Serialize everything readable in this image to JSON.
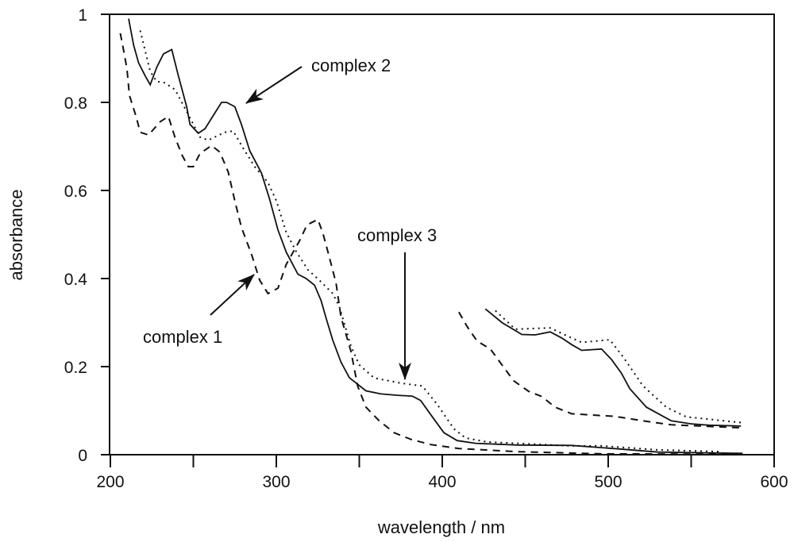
{
  "chart_data": {
    "type": "line",
    "title": "",
    "xlabel": "wavelength / nm",
    "ylabel": "absorbance",
    "xlim": [
      200,
      600
    ],
    "ylim": [
      0,
      1
    ],
    "xticks": [
      200,
      250,
      300,
      350,
      400,
      450,
      500,
      550,
      600
    ],
    "xtick_labels": [
      "200",
      "300",
      "400",
      "500",
      "600"
    ],
    "xtick_label_values": [
      200,
      300,
      400,
      500,
      600
    ],
    "yticks": [
      0,
      0.2,
      0.4,
      0.6,
      0.8,
      1
    ],
    "ytick_labels": [
      "0",
      "0.2",
      "0.4",
      "0.6",
      "0.8",
      "1"
    ],
    "grid": false,
    "color": "#111111",
    "series": [
      {
        "name": "complex 2",
        "style": "solid",
        "segments": [
          [
            [
              211,
              0.99
            ],
            [
              214,
              0.93
            ],
            [
              217,
              0.89
            ],
            [
              221,
              0.86
            ],
            [
              224,
              0.84
            ],
            [
              228,
              0.88
            ],
            [
              232,
              0.91
            ],
            [
              237,
              0.92
            ],
            [
              241,
              0.86
            ],
            [
              246,
              0.79
            ],
            [
              248,
              0.75
            ],
            [
              253,
              0.73
            ],
            [
              257,
              0.74
            ],
            [
              262,
              0.77
            ],
            [
              267,
              0.8
            ],
            [
              270,
              0.8
            ],
            [
              275,
              0.79
            ],
            [
              279,
              0.75
            ],
            [
              284,
              0.69
            ],
            [
              291,
              0.64
            ],
            [
              296,
              0.58
            ],
            [
              301,
              0.51
            ],
            [
              306,
              0.46
            ],
            [
              313,
              0.41
            ],
            [
              318,
              0.4
            ],
            [
              323,
              0.385
            ],
            [
              327,
              0.35
            ],
            [
              330,
              0.31
            ],
            [
              334,
              0.26
            ],
            [
              339,
              0.21
            ],
            [
              344,
              0.175
            ],
            [
              354,
              0.145
            ],
            [
              363,
              0.138
            ],
            [
              373,
              0.135
            ],
            [
              382,
              0.133
            ],
            [
              387,
              0.123
            ],
            [
              394,
              0.086
            ],
            [
              401,
              0.05
            ],
            [
              409,
              0.032
            ],
            [
              420,
              0.026
            ],
            [
              445,
              0.022
            ],
            [
              478,
              0.021
            ],
            [
              507,
              0.013
            ],
            [
              530,
              0.006
            ],
            [
              581,
              0.003
            ]
          ],
          [
            [
              426,
              0.331
            ],
            [
              436,
              0.3
            ],
            [
              448,
              0.273
            ],
            [
              456,
              0.272
            ],
            [
              465,
              0.279
            ],
            [
              472,
              0.265
            ],
            [
              478,
              0.25
            ],
            [
              484,
              0.237
            ],
            [
              496,
              0.24
            ],
            [
              502,
              0.216
            ],
            [
              508,
              0.185
            ],
            [
              513,
              0.15
            ],
            [
              523,
              0.108
            ],
            [
              538,
              0.077
            ],
            [
              550,
              0.07
            ],
            [
              561,
              0.067
            ],
            [
              580,
              0.065
            ]
          ]
        ]
      },
      {
        "name": "complex 3",
        "style": "dotted",
        "segments": [
          [
            [
              218,
              0.963
            ],
            [
              224,
              0.87
            ],
            [
              228,
              0.847
            ],
            [
              232,
              0.846
            ],
            [
              239,
              0.829
            ],
            [
              245,
              0.786
            ],
            [
              254,
              0.721
            ],
            [
              259,
              0.714
            ],
            [
              269,
              0.732
            ],
            [
              274,
              0.735
            ],
            [
              280,
              0.696
            ],
            [
              287,
              0.654
            ],
            [
              295,
              0.618
            ],
            [
              300,
              0.577
            ],
            [
              306,
              0.505
            ],
            [
              312,
              0.461
            ],
            [
              319,
              0.42
            ],
            [
              326,
              0.396
            ],
            [
              334,
              0.366
            ],
            [
              338,
              0.336
            ],
            [
              345,
              0.246
            ],
            [
              350,
              0.204
            ],
            [
              359,
              0.174
            ],
            [
              376,
              0.162
            ],
            [
              388,
              0.156
            ],
            [
              397,
              0.114
            ],
            [
              407,
              0.059
            ],
            [
              414,
              0.038
            ],
            [
              427,
              0.029
            ],
            [
              478,
              0.02
            ],
            [
              496,
              0.02
            ],
            [
              530,
              0.011
            ],
            [
              567,
              0.007
            ]
          ],
          [
            [
              432,
              0.327
            ],
            [
              444,
              0.285
            ],
            [
              465,
              0.288
            ],
            [
              475,
              0.27
            ],
            [
              484,
              0.255
            ],
            [
              501,
              0.261
            ],
            [
              509,
              0.222
            ],
            [
              521,
              0.156
            ],
            [
              535,
              0.108
            ],
            [
              547,
              0.086
            ],
            [
              580,
              0.073
            ]
          ]
        ]
      },
      {
        "name": "complex 1",
        "style": "dashed",
        "segments": [
          [
            [
              206,
              0.957
            ],
            [
              208,
              0.918
            ],
            [
              210,
              0.876
            ],
            [
              211.5,
              0.816
            ],
            [
              215.5,
              0.768
            ],
            [
              218,
              0.732
            ],
            [
              223,
              0.726
            ],
            [
              230,
              0.756
            ],
            [
              235,
              0.768
            ],
            [
              239,
              0.72
            ],
            [
              243.5,
              0.678
            ],
            [
              247,
              0.654
            ],
            [
              250,
              0.654
            ],
            [
              254,
              0.684
            ],
            [
              261,
              0.702
            ],
            [
              266,
              0.687
            ],
            [
              271,
              0.642
            ],
            [
              275,
              0.576
            ],
            [
              279,
              0.516
            ],
            [
              285,
              0.456
            ],
            [
              290,
              0.396
            ],
            [
              295,
              0.366
            ],
            [
              301,
              0.378
            ],
            [
              306,
              0.432
            ],
            [
              314,
              0.486
            ],
            [
              318.5,
              0.522
            ],
            [
              325,
              0.534
            ],
            [
              328,
              0.504
            ],
            [
              331,
              0.462
            ],
            [
              336,
              0.39
            ],
            [
              339,
              0.312
            ],
            [
              345,
              0.234
            ],
            [
              349,
              0.156
            ],
            [
              354,
              0.108
            ],
            [
              362,
              0.077
            ],
            [
              371,
              0.05
            ],
            [
              381,
              0.035
            ],
            [
              393,
              0.023
            ],
            [
              410,
              0.014
            ],
            [
              444,
              0.007
            ],
            [
              496,
              0.002
            ],
            [
              579,
              0.001
            ]
          ],
          [
            [
              410,
              0.324
            ],
            [
              415,
              0.291
            ],
            [
              421,
              0.258
            ],
            [
              429,
              0.24
            ],
            [
              436,
              0.204
            ],
            [
              443,
              0.168
            ],
            [
              452,
              0.144
            ],
            [
              460,
              0.132
            ],
            [
              468,
              0.108
            ],
            [
              478,
              0.093
            ],
            [
              504,
              0.087
            ],
            [
              521,
              0.077
            ],
            [
              538,
              0.068
            ],
            [
              580,
              0.061
            ]
          ]
        ]
      }
    ],
    "annotations": [
      {
        "text": "complex 2",
        "target": [
          271,
          0.8
        ]
      },
      {
        "text": "complex 1",
        "target": [
          290,
          0.4
        ]
      },
      {
        "text": "complex 3",
        "target": [
          377,
          0.17
        ]
      }
    ]
  }
}
